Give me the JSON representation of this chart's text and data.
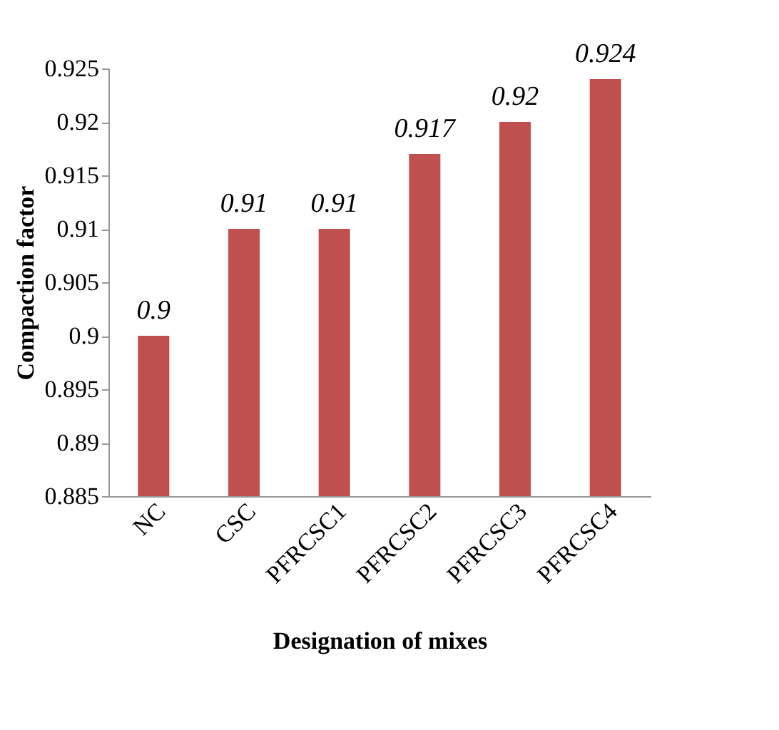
{
  "chart_data": {
    "type": "bar",
    "xlabel": "Designation of mixes",
    "ylabel": "Compaction factor",
    "categories": [
      "NC",
      "CSC",
      "PFRCSC1",
      "PFRCSC2",
      "PFRCSC3",
      "PFRCSC4"
    ],
    "values": [
      0.9,
      0.91,
      0.91,
      0.917,
      0.92,
      0.924
    ],
    "color": "#c0504d",
    "ylim": [
      0.885,
      0.925
    ],
    "yticks": [
      0.885,
      0.89,
      0.895,
      0.9,
      0.905,
      0.91,
      0.915,
      0.92,
      0.925
    ],
    "grid": false,
    "data_labels": true
  }
}
